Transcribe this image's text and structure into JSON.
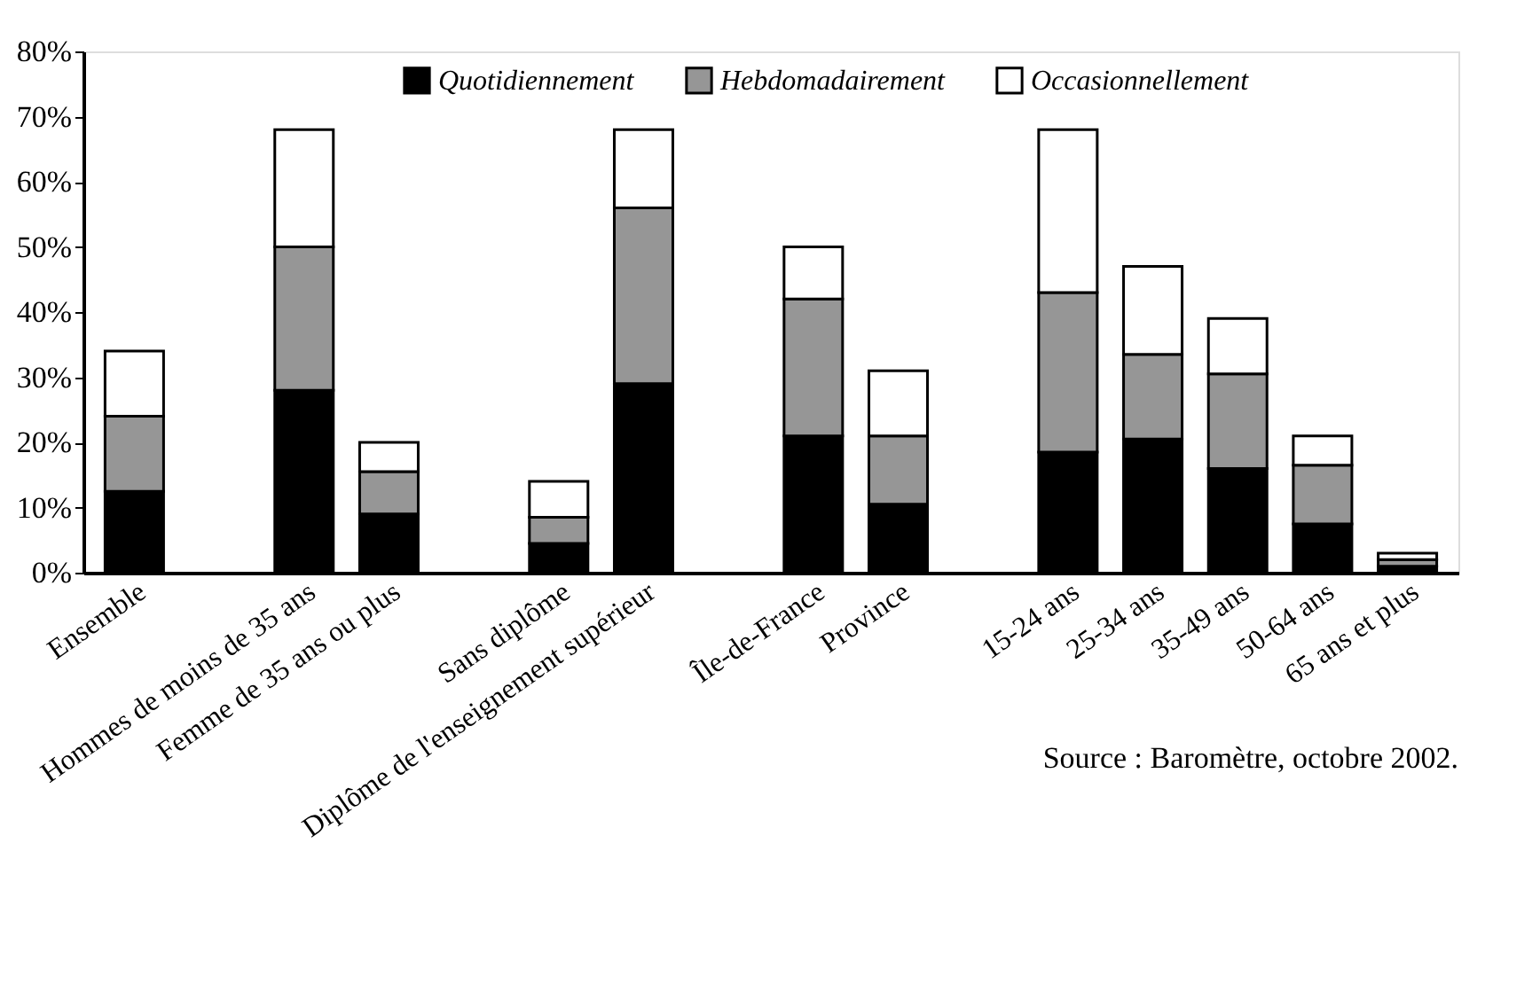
{
  "chart_data": {
    "type": "bar",
    "stacked": true,
    "categories": [
      "Ensemble",
      null,
      "Hommes de moins de 35 ans",
      "Femme de 35 ans ou plus",
      null,
      "Sans diplôme",
      "Diplôme de l'enseignement supérieur",
      null,
      "Île-de-France",
      "Province",
      null,
      "15-24 ans",
      "25-34 ans",
      "35-49 ans",
      "50-64 ans",
      "65 ans et plus"
    ],
    "series": [
      {
        "name": "Quotidiennement",
        "color": "#000000",
        "values": [
          12.5,
          null,
          28,
          9,
          null,
          4.5,
          29,
          null,
          21,
          10.5,
          null,
          18.5,
          20.5,
          16,
          7.5,
          1
        ]
      },
      {
        "name": "Hebdomadairement",
        "color": "#969696",
        "values": [
          11.5,
          null,
          22,
          6.5,
          null,
          4,
          27,
          null,
          21,
          10.5,
          null,
          24.5,
          13,
          14.5,
          9,
          1
        ]
      },
      {
        "name": "Occasionnellement",
        "color": "#ffffff",
        "values": [
          10,
          null,
          18,
          4.5,
          null,
          5.5,
          12,
          null,
          8,
          10,
          null,
          25,
          13.5,
          8.5,
          4.5,
          1
        ]
      }
    ],
    "ylim": [
      0,
      80
    ],
    "yticks": [
      {
        "value": 0,
        "label": "0%"
      },
      {
        "value": 10,
        "label": "10%"
      },
      {
        "value": 20,
        "label": "20%"
      },
      {
        "value": 30,
        "label": "30%"
      },
      {
        "value": 40,
        "label": "40%"
      },
      {
        "value": 50,
        "label": "50%"
      },
      {
        "value": 60,
        "label": "60%"
      },
      {
        "value": 70,
        "label": "70%"
      },
      {
        "value": 80,
        "label": "80%"
      }
    ],
    "grid": false,
    "legend": "top",
    "annotations": [
      "Source : Baromètre, octobre 2002."
    ]
  }
}
